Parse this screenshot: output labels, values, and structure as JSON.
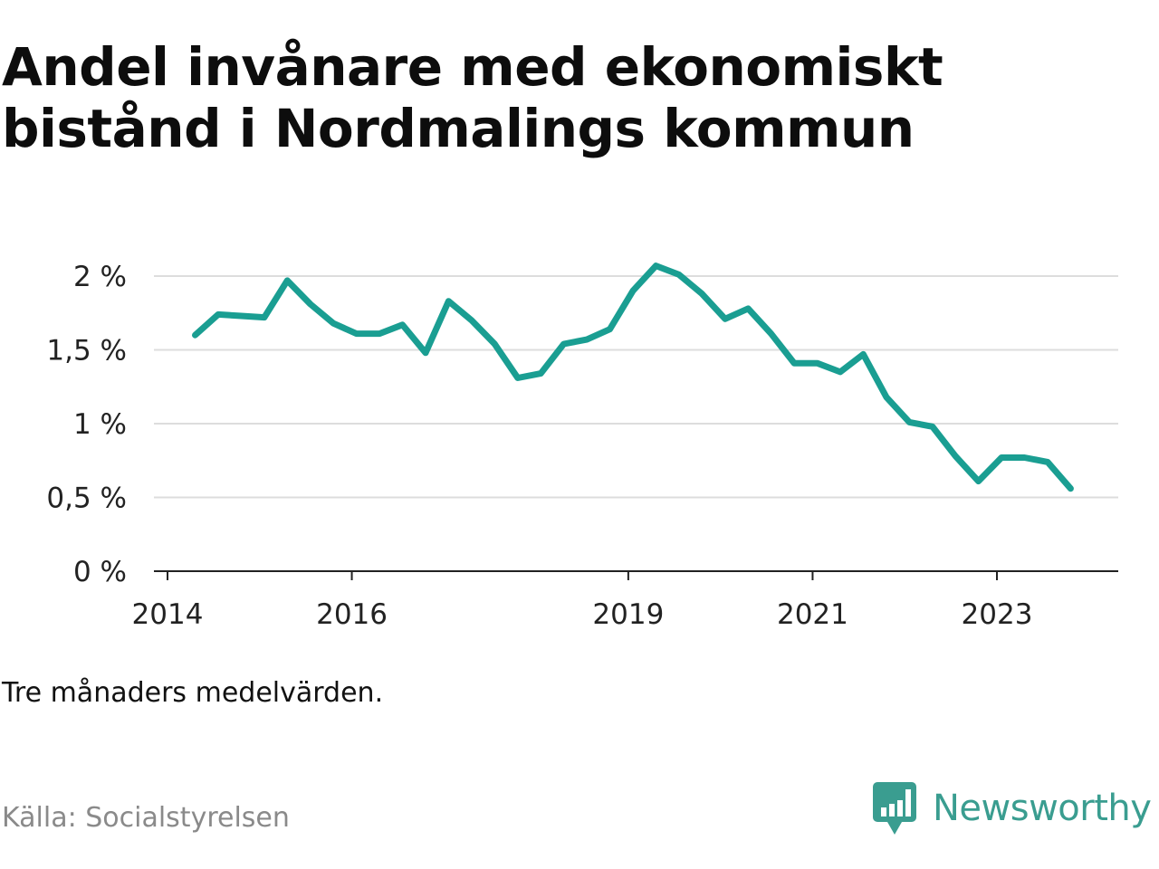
{
  "title": "Andel invånare med ekonomiskt bistånd i Nordmalings kommun",
  "note": "Tre månaders medelvärden.",
  "source": "Källa: Socialstyrelsen",
  "brand": {
    "name": "Newsworthy",
    "color": "#3a9d90",
    "icon": "newsworthy-logo-icon"
  },
  "colors": {
    "line": "#1a9e92",
    "grid": "#dddddd",
    "axis": "#222222"
  },
  "chart_data": {
    "type": "line",
    "title": "Andel invånare med ekonomiskt bistånd i Nordmalings kommun",
    "xlabel": "",
    "ylabel": "",
    "y_ticks": [
      0,
      0.5,
      1,
      1.5,
      2
    ],
    "y_tick_labels": [
      "0 %",
      "0,5 %",
      "1 %",
      "1,5 %",
      "2 %"
    ],
    "x_ticks": [
      2014,
      2016,
      2019,
      2021,
      2023
    ],
    "x_tick_labels": [
      "2014",
      "2016",
      "2019",
      "2021",
      "2023"
    ],
    "xlim": [
      2014.0,
      2024.3
    ],
    "ylim": [
      0,
      2.0
    ],
    "grid": true,
    "series": [
      {
        "x": [
          2014.3,
          2014.55,
          2014.8,
          2015.05,
          2015.3,
          2015.55,
          2015.8,
          2016.05,
          2016.3,
          2016.55,
          2016.8,
          2017.05,
          2017.3,
          2017.55,
          2017.8,
          2018.05,
          2018.3,
          2018.55,
          2018.8,
          2019.05,
          2019.3,
          2019.55,
          2019.8,
          2020.05,
          2020.3,
          2020.55,
          2020.8,
          2021.05,
          2021.3,
          2021.55,
          2021.8,
          2022.05,
          2022.3,
          2022.55,
          2022.8,
          2023.05,
          2023.3,
          2023.55,
          2023.8
        ],
        "values": [
          1.6,
          1.74,
          1.73,
          1.72,
          1.97,
          1.81,
          1.68,
          1.61,
          1.61,
          1.67,
          1.48,
          1.83,
          1.7,
          1.54,
          1.31,
          1.34,
          1.54,
          1.57,
          1.64,
          1.9,
          2.07,
          2.01,
          1.88,
          1.71,
          1.78,
          1.61,
          1.41,
          1.41,
          1.35,
          1.47,
          1.18,
          1.01,
          0.98,
          0.78,
          0.61,
          0.77,
          0.77,
          0.74,
          0.56
        ]
      }
    ]
  }
}
